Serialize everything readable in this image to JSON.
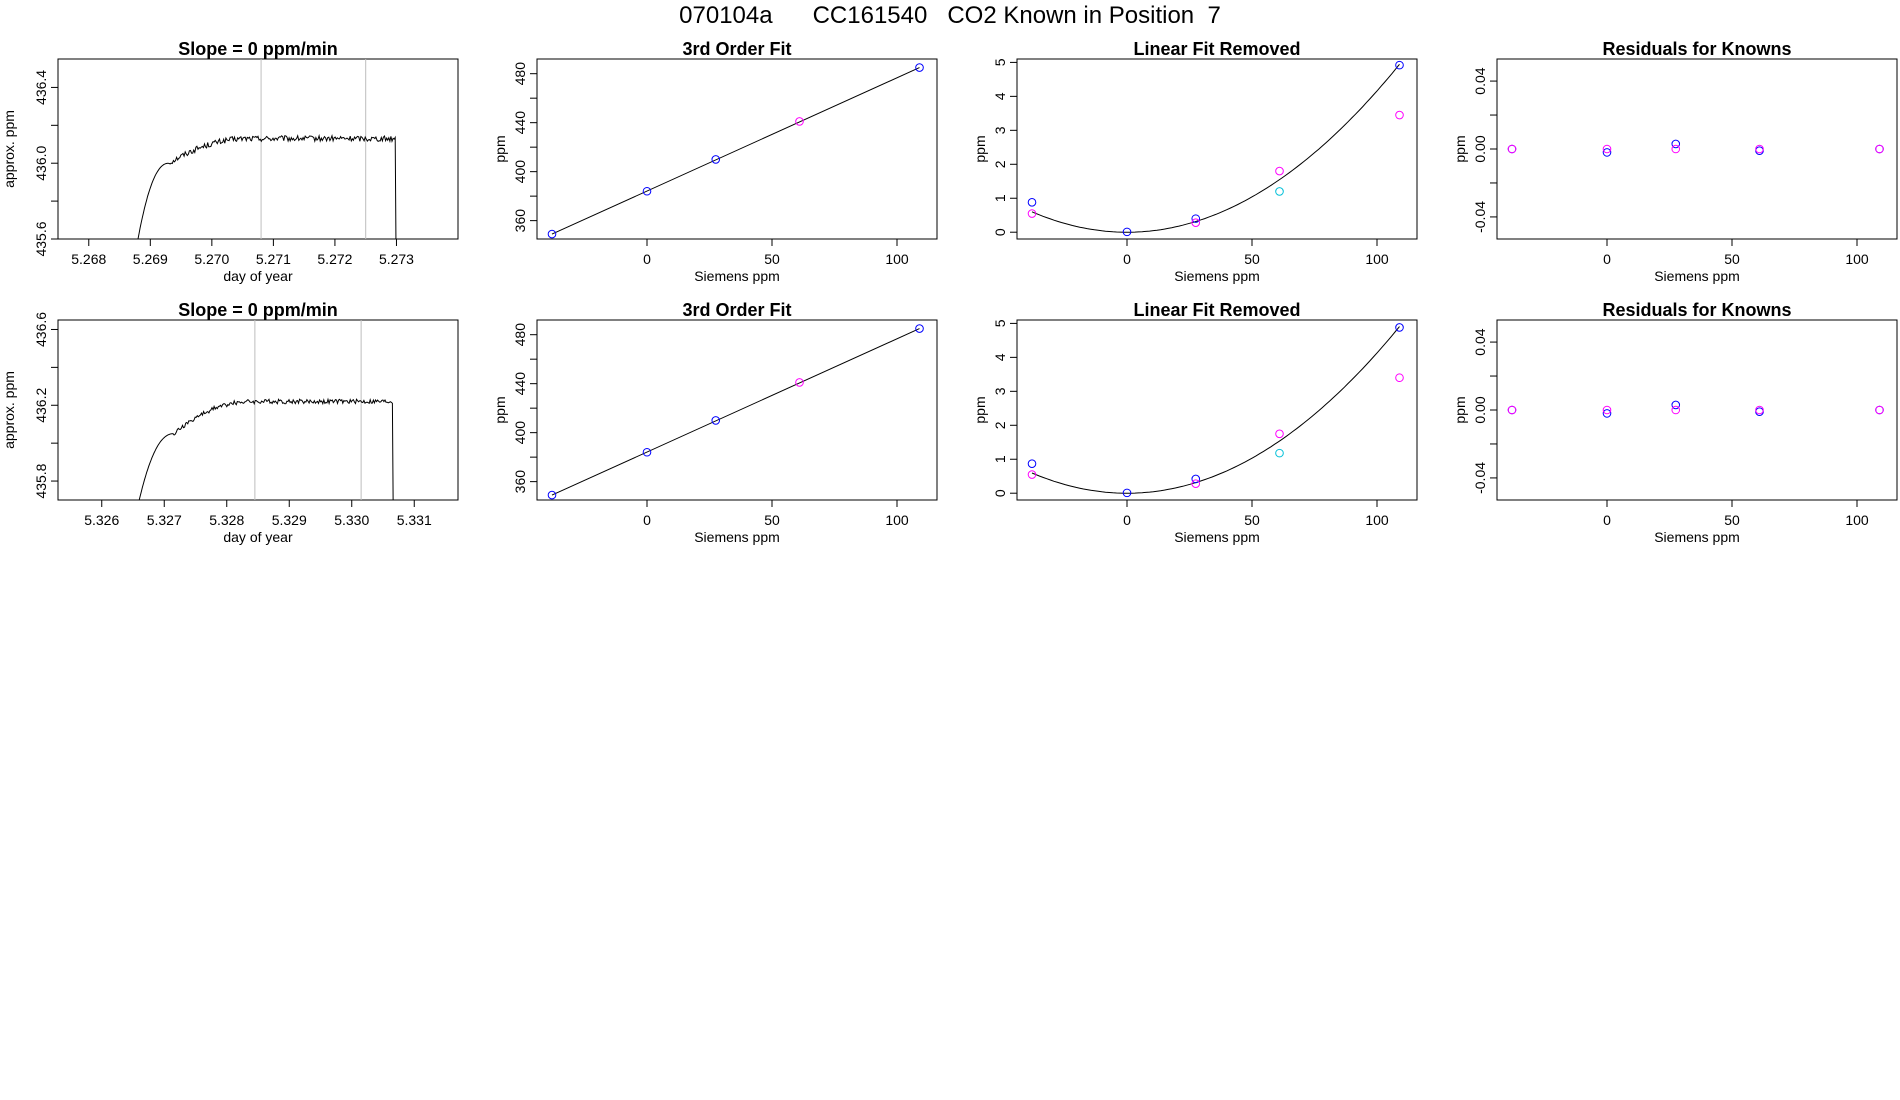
{
  "page": {
    "title": "070104a      CC161540   CO2 Known in Position  7"
  },
  "colors": {
    "axis": "#000000",
    "line": "#000000",
    "vline": "#bebebe",
    "blue": "#0000ff",
    "magenta": "#ff00ff",
    "cyan": "#00bfd8",
    "purple": "#8a2be2"
  },
  "chart_data": [
    {
      "id": "r0c0",
      "type": "line",
      "title": "Slope =  0  ppm/min",
      "xlabel": "day of year",
      "ylabel": "approx. ppm",
      "xlim": [
        5.2675,
        5.274
      ],
      "ylim": [
        435.6,
        436.55
      ],
      "xticks": [
        5.268,
        5.269,
        5.27,
        5.271,
        5.272,
        5.273
      ],
      "xtick_labels": [
        "5.268",
        "5.269",
        "5.270",
        "5.271",
        "5.272",
        "5.273"
      ],
      "yticks": [
        435.6,
        436.0,
        436.4
      ],
      "ytick_labels": [
        "435.6",
        "436.0",
        "436.4"
      ],
      "yminor": [
        435.8,
        436.2
      ],
      "vlines": [
        5.2708,
        5.2725
      ],
      "trace": {
        "x0": 5.2688,
        "rise_end": 5.2693,
        "plateau": 436.13,
        "x_end": 5.27298,
        "start": 435.6,
        "noise": 0.015,
        "early_dip": 436.0
      }
    },
    {
      "id": "r0c1",
      "type": "scatter",
      "title": "3rd Order Fit",
      "xlabel": "Siemens ppm",
      "ylabel": "ppm",
      "xlim": [
        -44,
        116
      ],
      "ylim": [
        345,
        492
      ],
      "xticks": [
        0,
        50,
        100
      ],
      "xtick_labels": [
        "0",
        "50",
        "100"
      ],
      "yticks": [
        360,
        400,
        440,
        480
      ],
      "ytick_labels": [
        "360",
        "400",
        "440",
        "480"
      ],
      "yminor": [
        380,
        420,
        460
      ],
      "curve": {
        "type": "line",
        "x": [
          -38,
          109
        ],
        "y": [
          349,
          485
        ]
      },
      "series": [
        {
          "name": "blue",
          "color": "blue",
          "x": [
            -38,
            0,
            27.5,
            109
          ],
          "y": [
            349,
            384,
            410,
            485
          ]
        },
        {
          "name": "magenta",
          "color": "magenta",
          "x": [
            61
          ],
          "y": [
            441
          ]
        }
      ]
    },
    {
      "id": "r0c2",
      "type": "scatter",
      "title": "Linear Fit Removed",
      "xlabel": "Siemens ppm",
      "ylabel": "ppm",
      "xlim": [
        -44,
        116
      ],
      "ylim": [
        -0.2,
        5.1
      ],
      "xticks": [
        0,
        50,
        100
      ],
      "xtick_labels": [
        "0",
        "50",
        "100"
      ],
      "yticks": [
        0,
        1,
        2,
        3,
        4,
        5
      ],
      "ytick_labels": [
        "0",
        "1",
        "2",
        "3",
        "4",
        "5"
      ],
      "curve": {
        "type": "quad",
        "a": 0.000416,
        "b": 0.0,
        "c": -0.02,
        "x": [
          -38,
          109
        ]
      },
      "series": [
        {
          "name": "blue",
          "color": "blue",
          "x": [
            -38,
            0,
            27.5,
            109
          ],
          "y": [
            0.88,
            0.01,
            0.4,
            4.92
          ]
        },
        {
          "name": "magenta",
          "color": "magenta",
          "x": [
            -38,
            27.5,
            61,
            109
          ],
          "y": [
            0.55,
            0.28,
            1.8,
            3.45
          ]
        },
        {
          "name": "cyan",
          "color": "cyan",
          "x": [
            61
          ],
          "y": [
            1.2
          ]
        }
      ]
    },
    {
      "id": "r0c3",
      "type": "scatter",
      "title": "Residuals for Knowns",
      "xlabel": "Siemens ppm",
      "ylabel": "ppm",
      "xlim": [
        -44,
        116
      ],
      "ylim": [
        -0.053,
        0.053
      ],
      "xticks": [
        0,
        50,
        100
      ],
      "xtick_labels": [
        "0",
        "50",
        "100"
      ],
      "yticks": [
        -0.04,
        0.0,
        0.04
      ],
      "ytick_labels": [
        "-0.04",
        "0.00",
        "0.04"
      ],
      "yminor": [
        -0.02,
        0.02
      ],
      "series": [
        {
          "name": "blue",
          "color": "blue",
          "x": [
            -38,
            0,
            27.5,
            61,
            109
          ],
          "y": [
            0.0,
            -0.002,
            0.003,
            -0.001,
            0.0
          ]
        },
        {
          "name": "magenta",
          "color": "magenta",
          "x": [
            -38,
            0,
            27.5,
            61,
            109
          ],
          "y": [
            0.0,
            0.0,
            0.0,
            0.0,
            0.0
          ]
        }
      ]
    },
    {
      "id": "r1c0",
      "type": "line",
      "title": "Slope =  0  ppm/min",
      "xlabel": "day of year",
      "ylabel": "approx. ppm",
      "xlim": [
        5.3253,
        5.3317
      ],
      "ylim": [
        435.7,
        436.65
      ],
      "xticks": [
        5.326,
        5.327,
        5.328,
        5.329,
        5.33,
        5.331
      ],
      "xtick_labels": [
        "5.326",
        "5.327",
        "5.328",
        "5.329",
        "5.330",
        "5.331"
      ],
      "yticks": [
        435.8,
        436.2,
        436.6
      ],
      "ytick_labels": [
        "435.8",
        "436.2",
        "436.6"
      ],
      "yminor": [
        436.0,
        436.4
      ],
      "vlines": [
        5.32845,
        5.33015
      ],
      "trace": {
        "x0": 5.3266,
        "rise_end": 5.32715,
        "plateau": 436.22,
        "x_end": 5.33065,
        "start": 435.7,
        "noise": 0.012,
        "early_dip": 436.05
      }
    },
    {
      "id": "r1c1",
      "type": "scatter",
      "title": "3rd Order Fit",
      "xlabel": "Siemens ppm",
      "ylabel": "ppm",
      "xlim": [
        -44,
        116
      ],
      "ylim": [
        345,
        492
      ],
      "xticks": [
        0,
        50,
        100
      ],
      "xtick_labels": [
        "0",
        "50",
        "100"
      ],
      "yticks": [
        360,
        400,
        440,
        480
      ],
      "ytick_labels": [
        "360",
        "400",
        "440",
        "480"
      ],
      "yminor": [
        380,
        420,
        460
      ],
      "curve": {
        "type": "line",
        "x": [
          -38,
          109
        ],
        "y": [
          349,
          485
        ]
      },
      "series": [
        {
          "name": "blue",
          "color": "blue",
          "x": [
            -38,
            0,
            27.5,
            109
          ],
          "y": [
            349,
            384,
            410,
            485
          ]
        },
        {
          "name": "magenta",
          "color": "magenta",
          "x": [
            61
          ],
          "y": [
            441
          ]
        }
      ]
    },
    {
      "id": "r1c2",
      "type": "scatter",
      "title": "Linear Fit Removed",
      "xlabel": "Siemens ppm",
      "ylabel": "ppm",
      "xlim": [
        -44,
        116
      ],
      "ylim": [
        -0.2,
        5.1
      ],
      "xticks": [
        0,
        50,
        100
      ],
      "xtick_labels": [
        "0",
        "50",
        "100"
      ],
      "yticks": [
        0,
        1,
        2,
        3,
        4,
        5
      ],
      "ytick_labels": [
        "0",
        "1",
        "2",
        "3",
        "4",
        "5"
      ],
      "curve": {
        "type": "quad",
        "a": 0.000413,
        "b": 0.0,
        "c": -0.02,
        "x": [
          -38,
          109
        ]
      },
      "series": [
        {
          "name": "blue",
          "color": "blue",
          "x": [
            -38,
            0,
            27.5,
            109
          ],
          "y": [
            0.87,
            0.01,
            0.42,
            4.88
          ]
        },
        {
          "name": "magenta",
          "color": "magenta",
          "x": [
            -38,
            27.5,
            61,
            109
          ],
          "y": [
            0.55,
            0.28,
            1.75,
            3.4
          ]
        },
        {
          "name": "cyan",
          "color": "cyan",
          "x": [
            61
          ],
          "y": [
            1.18
          ]
        }
      ]
    },
    {
      "id": "r1c3",
      "type": "scatter",
      "title": "Residuals for Knowns",
      "xlabel": "Siemens ppm",
      "ylabel": "ppm",
      "xlim": [
        -44,
        116
      ],
      "ylim": [
        -0.053,
        0.053
      ],
      "xticks": [
        0,
        50,
        100
      ],
      "xtick_labels": [
        "0",
        "50",
        "100"
      ],
      "yticks": [
        -0.04,
        0.0,
        0.04
      ],
      "ytick_labels": [
        "-0.04",
        "0.00",
        "0.04"
      ],
      "yminor": [
        -0.02,
        0.02
      ],
      "series": [
        {
          "name": "blue",
          "color": "blue",
          "x": [
            -38,
            0,
            27.5,
            61,
            109
          ],
          "y": [
            0.0,
            -0.002,
            0.003,
            -0.001,
            0.0
          ]
        },
        {
          "name": "magenta",
          "color": "magenta",
          "x": [
            -38,
            0,
            27.5,
            61,
            109
          ],
          "y": [
            0.0,
            0.0,
            0.0,
            0.0,
            0.0
          ]
        }
      ]
    }
  ]
}
